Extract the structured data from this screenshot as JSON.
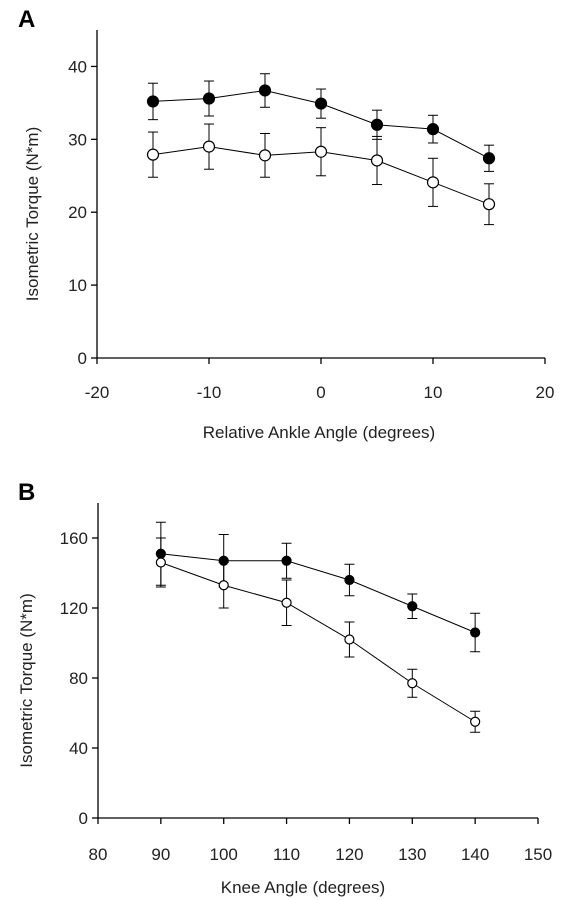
{
  "chart_data": [
    {
      "type": "line",
      "panel_label": "A",
      "xlabel": "Relative Ankle Angle (degrees)",
      "ylabel": "Isometric Torque (N*m)",
      "xlim": [
        -20,
        20
      ],
      "ylim": [
        0,
        45
      ],
      "xticks": [
        -20,
        -10,
        0,
        10,
        20
      ],
      "yticks": [
        0,
        10,
        20,
        30,
        40
      ],
      "x": [
        -15,
        -10,
        -5,
        0,
        5,
        10,
        15
      ],
      "series": [
        {
          "marker": "filled-circle",
          "values": [
            35.2,
            35.6,
            36.7,
            34.9,
            32.0,
            31.4,
            27.4
          ],
          "error": [
            2.5,
            2.4,
            2.3,
            2.0,
            2.0,
            1.9,
            1.8
          ]
        },
        {
          "marker": "open-circle",
          "values": [
            27.9,
            29.0,
            27.8,
            28.3,
            27.1,
            24.1,
            21.1
          ],
          "error": [
            3.1,
            3.1,
            3.0,
            3.3,
            3.3,
            3.3,
            2.8
          ]
        }
      ]
    },
    {
      "type": "line",
      "panel_label": "B",
      "xlabel": "Knee Angle (degrees)",
      "ylabel": "Isometric Torque (N*m)",
      "xlim": [
        80,
        150
      ],
      "ylim": [
        0,
        180
      ],
      "xticks": [
        80,
        90,
        100,
        110,
        120,
        130,
        140,
        150
      ],
      "yticks": [
        0,
        40,
        80,
        120,
        160
      ],
      "x": [
        90,
        100,
        110,
        120,
        130,
        140
      ],
      "series": [
        {
          "marker": "filled-circle",
          "values": [
            151,
            147,
            147,
            136,
            121,
            106
          ],
          "error": [
            18,
            15,
            10,
            9,
            7,
            11
          ]
        },
        {
          "marker": "open-circle",
          "values": [
            146,
            133,
            123,
            102,
            77,
            55
          ],
          "error": [
            14,
            13,
            13,
            10,
            8,
            6
          ]
        }
      ]
    }
  ]
}
